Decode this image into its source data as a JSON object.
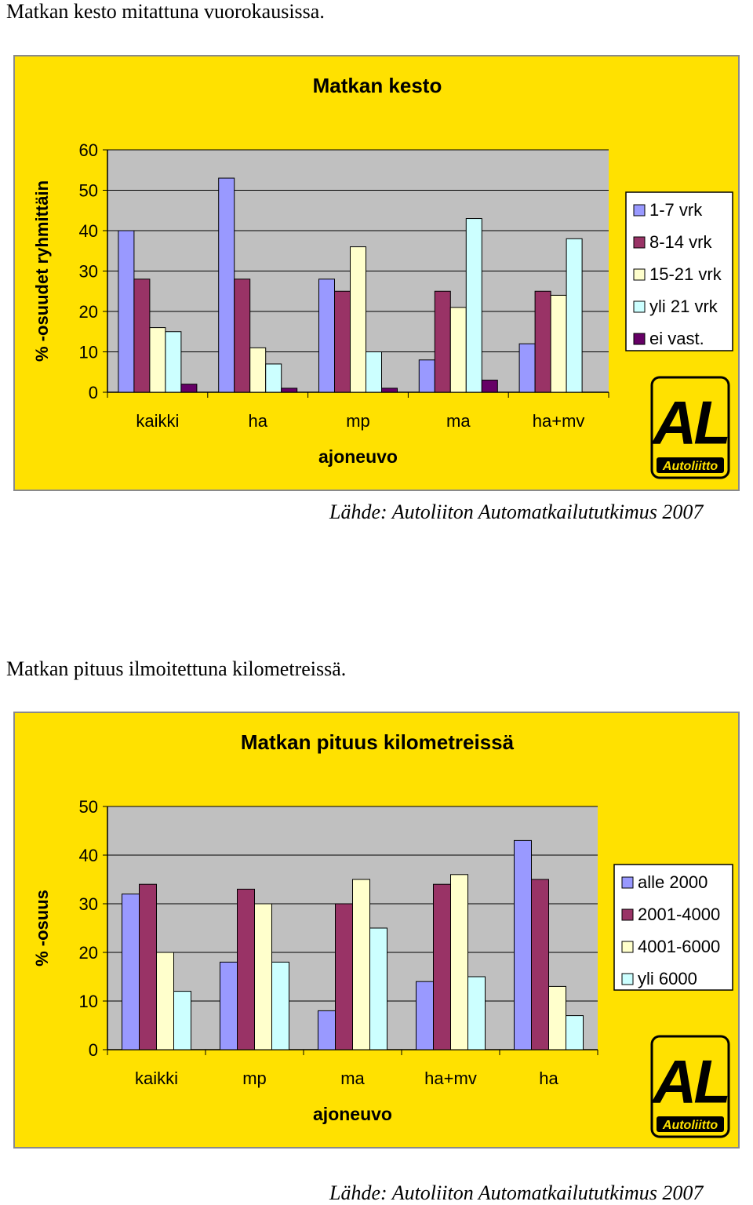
{
  "document": {
    "heading1": "Matkan kesto mitattuna vuorokausissa.",
    "source1": "Lähde: Autoliiton Automatkailututkimus 2007",
    "heading2": "Matkan pituus ilmoitettuna kilometreissä.",
    "source2": "Lähde: Autoliiton Automatkailututkimus 2007"
  },
  "logo": {
    "text": "AL",
    "subtext": "Autoliitto"
  },
  "chart_data": [
    {
      "type": "bar",
      "title": "Matkan kesto",
      "xlabel": "ajoneuvo",
      "ylabel": "% -osuudet ryhmittäin",
      "ylim": [
        0,
        60
      ],
      "yticks": [
        0,
        10,
        20,
        30,
        40,
        50,
        60
      ],
      "grid": true,
      "legend_position": "right",
      "categories": [
        "kaikki",
        "ha",
        "mp",
        "ma",
        "ha+mv"
      ],
      "series": [
        {
          "name": "1-7 vrk",
          "color": "#9999ff",
          "values": [
            40,
            53,
            28,
            8,
            12
          ]
        },
        {
          "name": "8-14 vrk",
          "color": "#993366",
          "values": [
            28,
            28,
            25,
            25,
            25
          ]
        },
        {
          "name": "15-21 vrk",
          "color": "#ffffcc",
          "values": [
            16,
            11,
            36,
            21,
            24
          ]
        },
        {
          "name": "yli 21 vrk",
          "color": "#ccffff",
          "values": [
            15,
            7,
            10,
            43,
            38
          ]
        },
        {
          "name": "ei vast.",
          "color": "#660066",
          "values": [
            2,
            1,
            1,
            3,
            0
          ]
        }
      ]
    },
    {
      "type": "bar",
      "title": "Matkan pituus kilometreissä",
      "xlabel": "ajoneuvo",
      "ylabel": "% -osuus",
      "ylim": [
        0,
        50
      ],
      "yticks": [
        0,
        10,
        20,
        30,
        40,
        50
      ],
      "grid": true,
      "legend_position": "right",
      "categories": [
        "kaikki",
        "mp",
        "ma",
        "ha+mv",
        "ha"
      ],
      "series": [
        {
          "name": "alle 2000",
          "color": "#9999ff",
          "values": [
            32,
            18,
            8,
            14,
            43
          ]
        },
        {
          "name": "2001-4000",
          "color": "#993366",
          "values": [
            34,
            33,
            30,
            34,
            35
          ]
        },
        {
          "name": "4001-6000",
          "color": "#ffffcc",
          "values": [
            20,
            30,
            35,
            36,
            13
          ]
        },
        {
          "name": "yli 6000",
          "color": "#ccffff",
          "values": [
            12,
            18,
            25,
            15,
            7
          ]
        }
      ]
    }
  ]
}
